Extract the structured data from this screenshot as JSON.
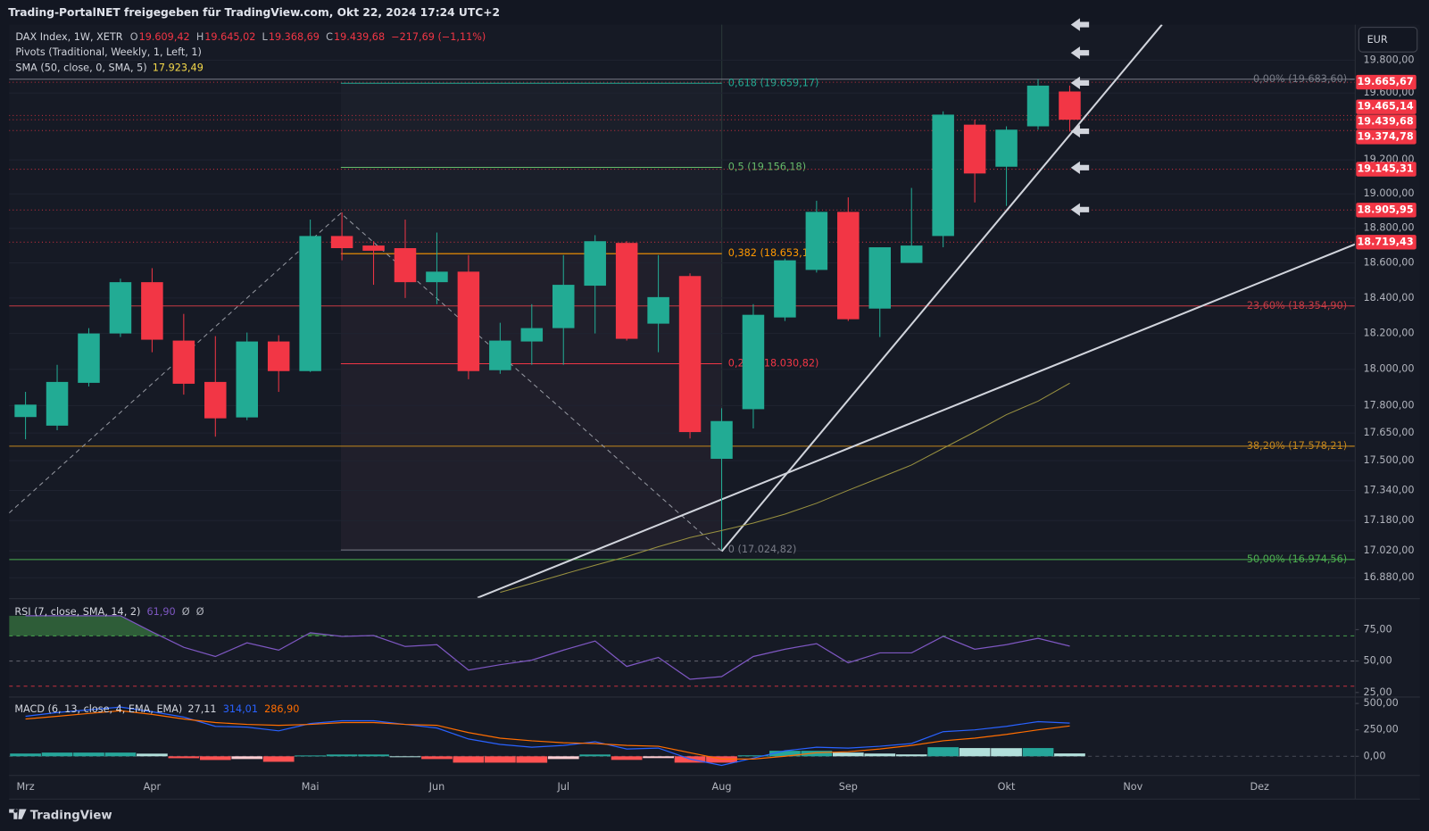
{
  "header": {
    "title": "Trading-PortalNET freigegeben für TradingView.com, Okt 22, 2024 17:24 UTC+2"
  },
  "currency": "EUR",
  "footer": "TradingView",
  "chart_data": [
    {
      "type": "candlestick",
      "symbol": "DAX Index, 1W, XETR",
      "ohlc": [
        {
          "key": "O",
          "value": "19.609,42"
        },
        {
          "key": "H",
          "value": "19.645,02"
        },
        {
          "key": "L",
          "value": "19.368,69"
        },
        {
          "key": "C",
          "value": "19.439,68"
        }
      ],
      "change": "−217,69 (−1,11%)",
      "indicators": [
        "Pivots (Traditional, Weekly, 1, Left, 1)",
        "SMA (50, close, 0, SMA, 5)"
      ],
      "sma_value": "17.923,49",
      "categories": [
        "Mrz",
        null,
        null,
        null,
        "Apr",
        null,
        null,
        null,
        null,
        "Mai",
        null,
        null,
        null,
        "Jun",
        null,
        null,
        null,
        "Jul",
        null,
        null,
        null,
        null,
        "Aug",
        null,
        null,
        null,
        "Sep",
        null,
        null,
        null,
        null,
        "Okt",
        null,
        null,
        null,
        "Nov",
        null,
        null,
        null,
        "Dez",
        null,
        null,
        null
      ],
      "open": [
        17737,
        17690,
        17925,
        18200,
        18490,
        18160,
        17930,
        17735,
        18155,
        17990,
        18755,
        18700,
        18685,
        18490,
        18550,
        17995,
        18155,
        18230,
        18470,
        18715,
        18255,
        18525,
        17510,
        17780,
        18290,
        18560,
        18895,
        18340,
        18600,
        18755,
        19410,
        19160,
        19400,
        19609.42,
        null,
        null,
        null,
        null,
        null,
        null,
        null,
        null,
        null
      ],
      "high": [
        17875,
        18025,
        18230,
        18510,
        18570,
        18310,
        18185,
        18205,
        18190,
        18850,
        18892,
        18725,
        18850,
        18775,
        18645,
        18260,
        18365,
        18645,
        18760,
        18725,
        18645,
        18540,
        17785,
        18365,
        18625,
        18960,
        18980,
        18690,
        19035,
        19490,
        19440,
        19400,
        19683.6,
        19645.02,
        null,
        null,
        null,
        null,
        null,
        null,
        null,
        null,
        null
      ],
      "low": [
        17616,
        17665,
        17905,
        18180,
        18095,
        17860,
        17630,
        17720,
        17875,
        17985,
        18615,
        18475,
        18400,
        18365,
        17945,
        17975,
        18025,
        18025,
        18200,
        18160,
        18095,
        17620,
        17024.82,
        17675,
        18270,
        18545,
        18270,
        18180,
        18600,
        18690,
        18950,
        18930,
        19380,
        19368.69,
        null,
        null,
        null,
        null,
        null,
        null,
        null,
        null,
        null
      ],
      "close": [
        17805,
        17930,
        18200,
        18490,
        18165,
        17920,
        17730,
        18155,
        17990,
        18755,
        18685,
        18670,
        18490,
        18550,
        17990,
        18160,
        18230,
        18475,
        18725,
        18170,
        18405,
        17655,
        17715,
        18305,
        18615,
        18895,
        18280,
        18690,
        18700,
        19470,
        19120,
        19380,
        19645,
        19439.68,
        null,
        null,
        null,
        null,
        null,
        null,
        null,
        null,
        null
      ],
      "up_color": "#22ab94",
      "down_color": "#f23645",
      "sma": {
        "color": "#9a9240",
        "values": [
          null,
          null,
          null,
          null,
          null,
          null,
          null,
          null,
          null,
          null,
          null,
          null,
          null,
          null,
          null,
          16804,
          16850,
          16898,
          16945,
          16990,
          17042,
          17090,
          17127,
          17167,
          17214,
          17272,
          17341,
          17408,
          17477,
          17567,
          17656,
          17750,
          17824,
          17923.49,
          null,
          null,
          null,
          null,
          null,
          null,
          null,
          null,
          null
        ]
      },
      "log_scale": true,
      "grid": true,
      "ylim": [
        16776,
        20018
      ],
      "yticks": [
        {
          "value": 19800,
          "label": "19.800,00"
        },
        {
          "value": 19600,
          "label": "19.600,00"
        },
        {
          "value": 19200,
          "label": "19.200,00"
        },
        {
          "value": 19000,
          "label": "19.000,00"
        },
        {
          "value": 18800,
          "label": "18.800,00"
        },
        {
          "value": 18600,
          "label": "18.600,00"
        },
        {
          "value": 18400,
          "label": "18.400,00"
        },
        {
          "value": 18200,
          "label": "18.200,00"
        },
        {
          "value": 18000,
          "label": "18.000,00"
        },
        {
          "value": 17800,
          "label": "17.800,00"
        },
        {
          "value": 17650,
          "label": "17.650,00"
        },
        {
          "value": 17500,
          "label": "17.500,00"
        },
        {
          "value": 17340,
          "label": "17.340,00"
        },
        {
          "value": 17180,
          "label": "17.180,00"
        },
        {
          "value": 17020,
          "label": "17.020,00"
        },
        {
          "value": 16880,
          "label": "16.880,00"
        }
      ],
      "price_labels": [
        {
          "value": 19665.67,
          "label": "19.665,67"
        },
        {
          "value": 19465.14,
          "label": "19.465,14"
        },
        {
          "value": 19439.68,
          "label": "19.439,68"
        },
        {
          "value": 19374.78,
          "label": "19.374,78"
        },
        {
          "value": 19145.31,
          "label": "19.145,31"
        },
        {
          "value": 18905.95,
          "label": "18.905,95"
        },
        {
          "value": 18719.43,
          "label": "18.719,43"
        }
      ],
      "price_label_color": "#f23645",
      "fib_retracement": [
        {
          "value": 19659.17,
          "label": "0,618 (19.659,17)",
          "color": "#22ab94"
        },
        {
          "value": 19156.18,
          "label": "0,5 (19.156,18)",
          "color": "#66bb6a"
        },
        {
          "value": 18653.18,
          "label": "0,382 (18.653,18)",
          "color": "#ff9800"
        },
        {
          "value": 18030.82,
          "label": "0,236 (18.030,82)",
          "color": "#f23645"
        },
        {
          "value": 17024.82,
          "label": "0 (17.024,82)",
          "color": "#787b86"
        }
      ],
      "fib_levels": [
        {
          "value": 19683.6,
          "label": "0,00% (19.683,60)",
          "color": "#787b86"
        },
        {
          "value": 18354.9,
          "label": "23,60% (18.354,90)",
          "color": "#c63b44"
        },
        {
          "value": 17578.21,
          "label": "38,20% (17.578,21)",
          "color": "#c4871d"
        },
        {
          "value": 16974.56,
          "label": "50,00% (16.974,56)",
          "color": "#4caf50"
        }
      ]
    },
    {
      "type": "line",
      "title": "RSI (7, close, SMA, 14, 2)",
      "legend_values": [
        "61,90",
        "Ø",
        "Ø"
      ],
      "series": [
        {
          "color": "#7e57c2",
          "values": [
            86,
            86,
            86,
            86,
            73.2,
            60.9,
            53.6,
            64.5,
            58.7,
            72.5,
            69.6,
            70.3,
            61.6,
            63.0,
            42.8,
            47.1,
            50.7,
            58.7,
            65.9,
            45.7,
            52.9,
            35.5,
            37.7,
            53.6,
            59.4,
            63.8,
            48.6,
            56.5,
            56.5,
            69.6,
            59.4,
            63.0,
            68.1,
            61.9
          ]
        }
      ],
      "overbought_fill": "#4caf50",
      "levels": [
        {
          "value": 70,
          "color": "#4caf50"
        },
        {
          "value": 50,
          "color": "#787b86"
        },
        {
          "value": 30,
          "color": "#f23645"
        }
      ],
      "ylim": [
        22.1,
        98.9
      ],
      "yticks": [
        {
          "value": 75,
          "label": "75,00"
        },
        {
          "value": 50,
          "label": "50,00"
        },
        {
          "value": 25,
          "label": "25,00"
        }
      ]
    },
    {
      "type": "macd",
      "title": "MACD (6, 13, close, 4, EMA, EMA)",
      "legend_values": [
        "27,11",
        "314,01",
        "286,90"
      ],
      "histogram": {
        "values": [
          26,
          35,
          35,
          35,
          25,
          -18,
          -35,
          -26,
          -52,
          8,
          17,
          17,
          0,
          -26,
          -60,
          -60,
          -61,
          -26,
          17,
          -34,
          -17,
          -60,
          -60,
          9,
          52,
          52,
          35,
          26,
          18,
          86,
          78,
          77,
          78,
          27.11
        ],
        "colors": [
          "#26a69a",
          "#b2dfdb",
          "#ff5252",
          "#ffcdd2"
        ]
      },
      "series": [
        {
          "color": "#2962ff",
          "values": [
            379,
            414,
            440,
            466,
            422,
            371,
            284,
            276,
            241,
            310,
            336,
            336,
            302,
            267,
            164,
            112,
            86,
            103,
            138,
            69,
            78,
            -26,
            -86,
            -17,
            52,
            86,
            78,
            95,
            121,
            233,
            250,
            284,
            328,
            314.01
          ]
        },
        {
          "color": "#ff6d00",
          "values": [
            353,
            379,
            405,
            431,
            397,
            353,
            319,
            302,
            293,
            302,
            319,
            319,
            302,
            293,
            224,
            172,
            147,
            129,
            121,
            103,
            95,
            34,
            -26,
            -26,
            0,
            34,
            43,
            69,
            103,
            147,
            172,
            207,
            250,
            286.9
          ]
        }
      ],
      "ylim": [
        -181,
        552
      ],
      "yticks": [
        {
          "value": 500,
          "label": "500,00"
        },
        {
          "value": 250,
          "label": "250,00"
        },
        {
          "value": 0,
          "label": "0,00"
        }
      ]
    }
  ]
}
